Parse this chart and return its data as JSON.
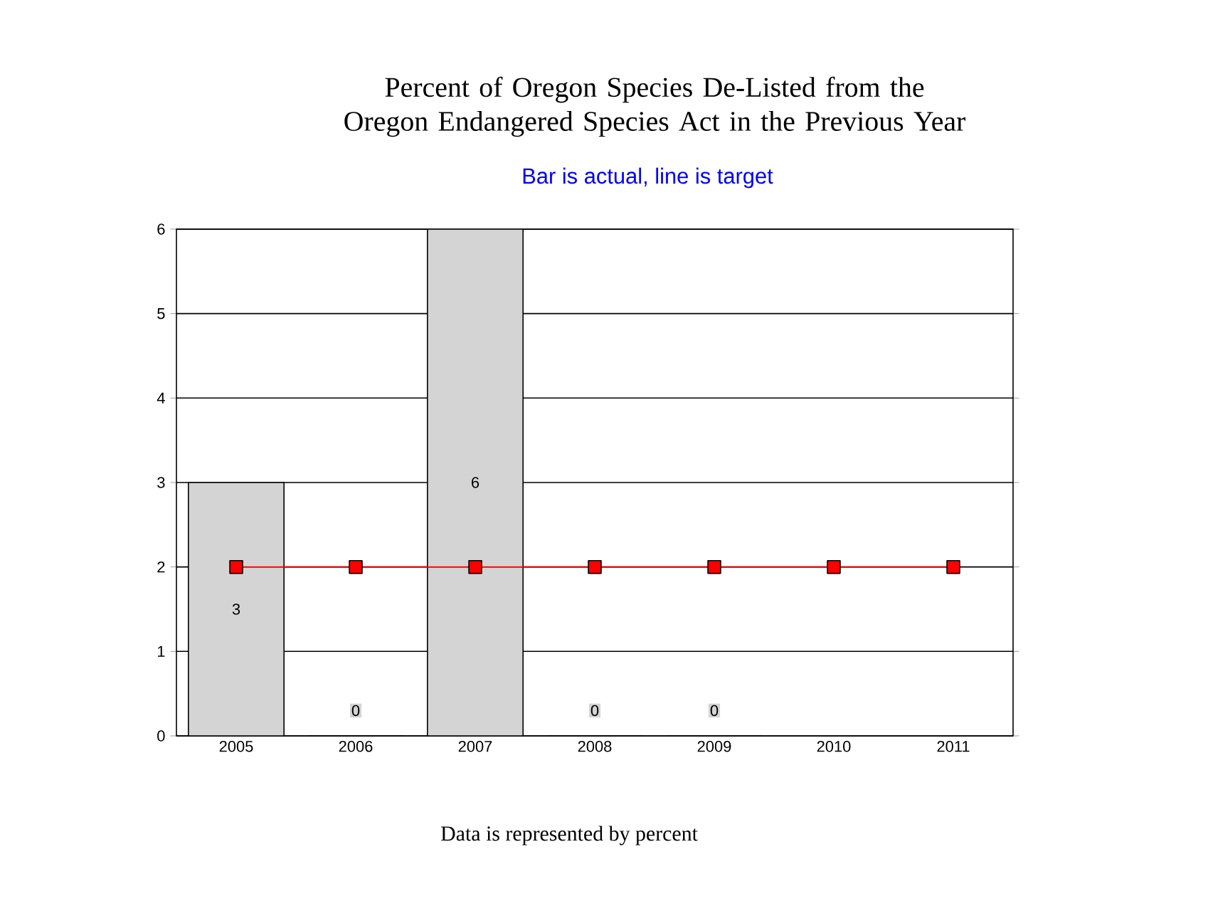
{
  "chart_data": {
    "type": "bar",
    "title": "Percent of Oregon Species De-Listed from the Oregon Endangered Species Act in the Previous Year",
    "subtitle": "Bar is actual, line is target",
    "categories": [
      "2005",
      "2006",
      "2007",
      "2008",
      "2009",
      "2010",
      "2011"
    ],
    "series": [
      {
        "color": "#d4d4d4",
        "values": [
          3,
          0,
          6,
          0,
          0,
          null,
          null
        ],
        "value_labels": [
          "3",
          "0",
          "6",
          "0",
          "0",
          null,
          null
        ]
      },
      {
        "type": "line",
        "color": "#ff0000",
        "marker": "square",
        "values": [
          2,
          2,
          2,
          2,
          2,
          2,
          2
        ]
      }
    ],
    "ylim": [
      0,
      6
    ],
    "yticks": [
      0,
      1,
      2,
      3,
      4,
      5,
      6
    ],
    "grid": "y",
    "annotations": [
      "Data is represented by percent"
    ]
  }
}
